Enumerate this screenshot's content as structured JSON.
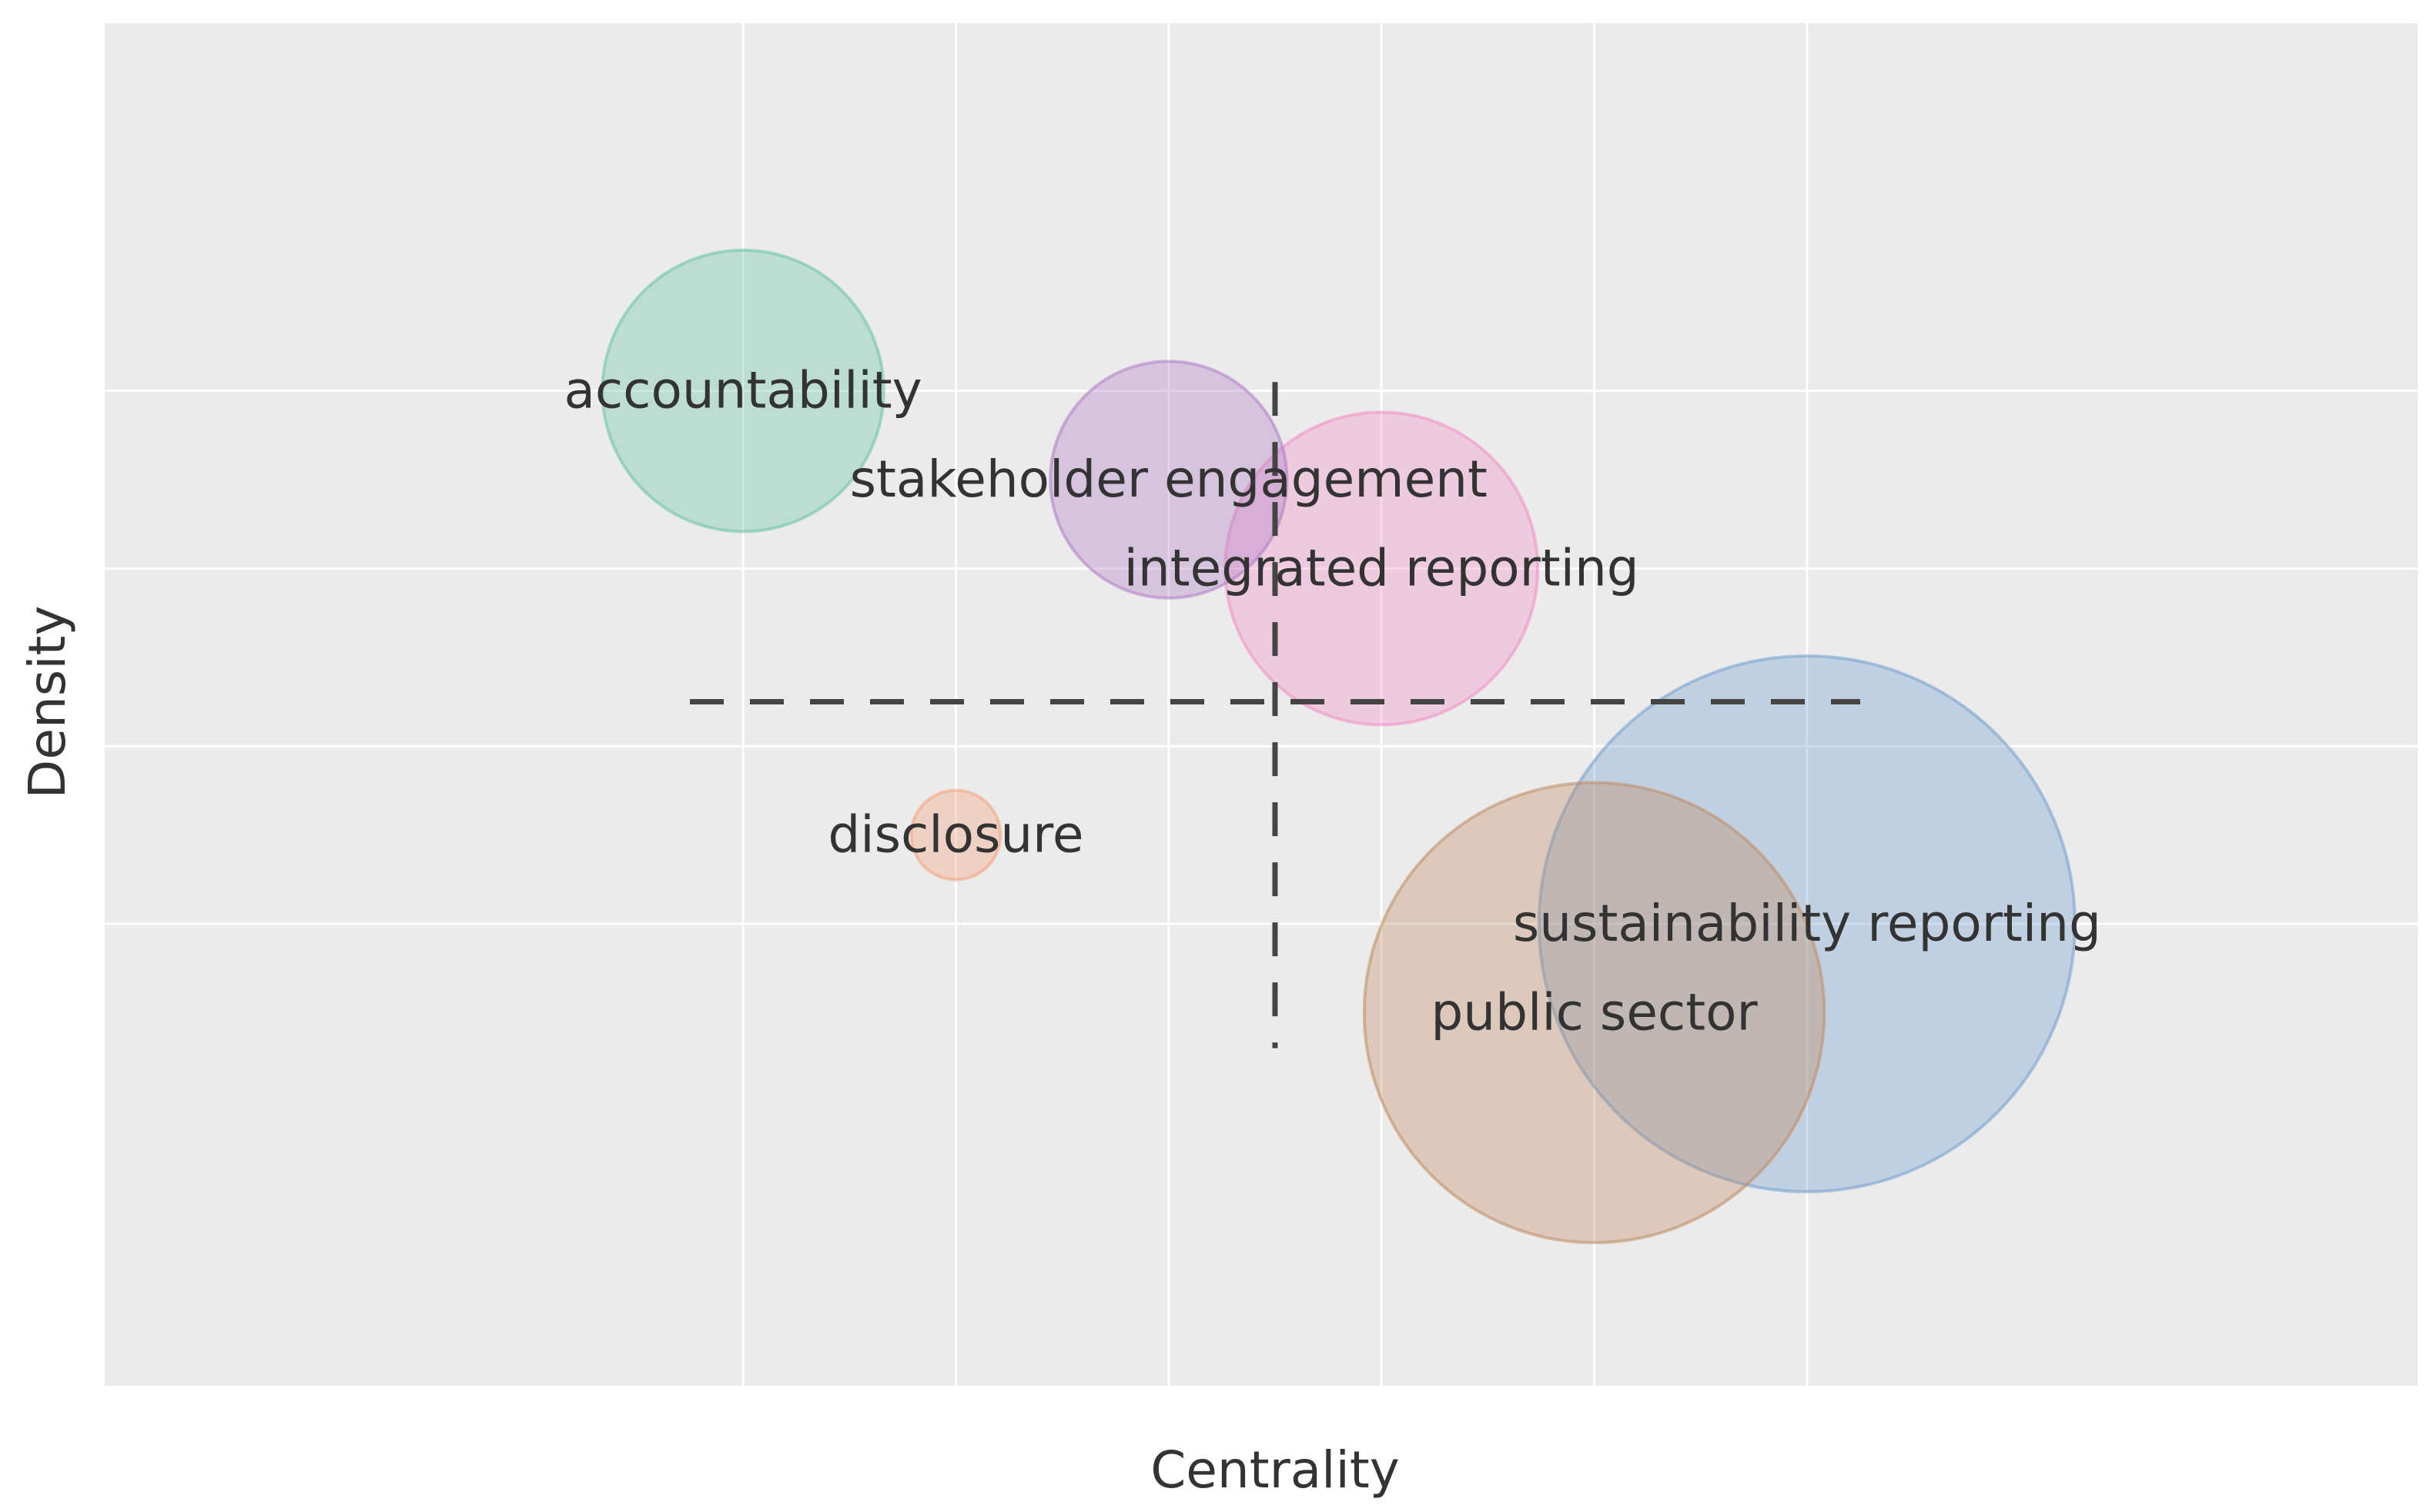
{
  "chart_data": {
    "type": "bubble",
    "title": "",
    "xlabel": "Centrality",
    "ylabel": "Density",
    "xlim": [
      0,
      10.87
    ],
    "ylim": [
      0,
      7.67
    ],
    "xgrid": [
      3,
      4,
      5,
      6,
      7,
      8
    ],
    "ygrid": [
      2.6,
      3.6,
      4.6,
      5.6
    ],
    "grid": true,
    "x_ticklabels_shown": false,
    "y_ticklabels_shown": false,
    "reference_lines": {
      "vertical_x": 5.5,
      "horizontal_y": 3.85
    },
    "series": [
      {
        "name": "accountability",
        "x": 3.0,
        "y": 5.6,
        "size": 6.3,
        "color": "#66c2a5"
      },
      {
        "name": "stakeholder engagement",
        "x": 5.0,
        "y": 5.1,
        "size": 5.3,
        "color": "#b07cc6"
      },
      {
        "name": "integrated reporting",
        "x": 6.0,
        "y": 4.6,
        "size": 7.0,
        "color": "#f28cc4"
      },
      {
        "name": "disclosure",
        "x": 4.0,
        "y": 3.1,
        "size": 2.0,
        "color": "#f5a07a"
      },
      {
        "name": "sustainability reporting",
        "x": 8.0,
        "y": 2.6,
        "size": 12.0,
        "color": "#6f9fcf"
      },
      {
        "name": "public sector",
        "x": 7.0,
        "y": 2.1,
        "size": 10.3,
        "color": "#bf8a62"
      }
    ]
  }
}
